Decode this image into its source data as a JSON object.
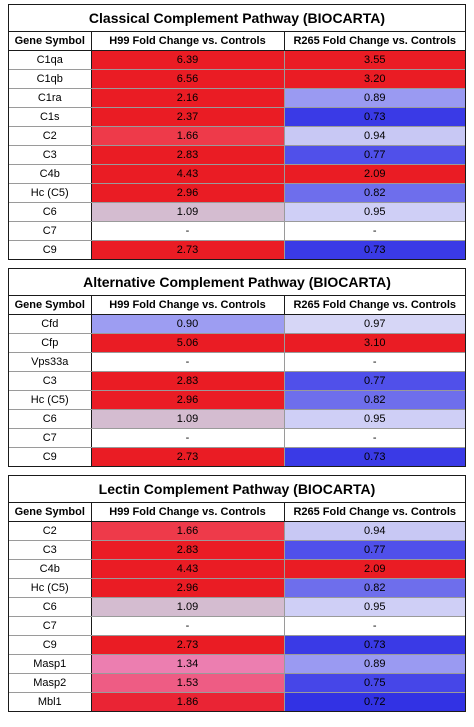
{
  "columns": {
    "gene": "Gene Symbol",
    "h99": "H99 Fold Change vs. Controls",
    "r265": "R265 Fold Change vs. Controls"
  },
  "tables": [
    {
      "title": "Classical Complement Pathway (BIOCARTA)",
      "rows": [
        {
          "gene": "C1qa",
          "h99": "6.39",
          "r265": "3.55",
          "h99_color": "#ea1c24",
          "r265_color": "#ea1c24"
        },
        {
          "gene": "C1qb",
          "h99": "6.56",
          "r265": "3.20",
          "h99_color": "#ea1c24",
          "r265_color": "#ea1c24"
        },
        {
          "gene": "C1ra",
          "h99": "2.16",
          "r265": "0.89",
          "h99_color": "#ea1c24",
          "r265_color": "#9a9af2"
        },
        {
          "gene": "C1s",
          "h99": "2.37",
          "r265": "0.73",
          "h99_color": "#ea1c24",
          "r265_color": "#3a3ae6"
        },
        {
          "gene": "C2",
          "h99": "1.66",
          "r265": "0.94",
          "h99_color": "#ee3a4a",
          "r265_color": "#c8c8f4"
        },
        {
          "gene": "C3",
          "h99": "2.83",
          "r265": "0.77",
          "h99_color": "#ea1c24",
          "r265_color": "#5050ea"
        },
        {
          "gene": "C4b",
          "h99": "4.43",
          "r265": "2.09",
          "h99_color": "#ea1c24",
          "r265_color": "#ea1c24"
        },
        {
          "gene": "Hc (C5)",
          "h99": "2.96",
          "r265": "0.82",
          "h99_color": "#ea1c24",
          "r265_color": "#6e6eec"
        },
        {
          "gene": "C6",
          "h99": "1.09",
          "r265": "0.95",
          "h99_color": "#d4bcd0",
          "r265_color": "#cfcff6"
        },
        {
          "gene": "C7",
          "h99": "-",
          "r265": "-",
          "h99_color": "#ffffff",
          "r265_color": "#ffffff"
        },
        {
          "gene": "C9",
          "h99": "2.73",
          "r265": "0.73",
          "h99_color": "#ea1c24",
          "r265_color": "#3a3ae6"
        }
      ]
    },
    {
      "title": "Alternative Complement Pathway (BIOCARTA)",
      "rows": [
        {
          "gene": "Cfd",
          "h99": "0.90",
          "r265": "0.97",
          "h99_color": "#9d9df2",
          "r265_color": "#d6d6f6"
        },
        {
          "gene": "Cfp",
          "h99": "5.06",
          "r265": "3.10",
          "h99_color": "#ea1c24",
          "r265_color": "#ea1c24"
        },
        {
          "gene": "Vps33a",
          "h99": "-",
          "r265": "-",
          "h99_color": "#ffffff",
          "r265_color": "#ffffff"
        },
        {
          "gene": "C3",
          "h99": "2.83",
          "r265": "0.77",
          "h99_color": "#ea1c24",
          "r265_color": "#5050ea"
        },
        {
          "gene": "Hc (C5)",
          "h99": "2.96",
          "r265": "0.82",
          "h99_color": "#ea1c24",
          "r265_color": "#6e6eec"
        },
        {
          "gene": "C6",
          "h99": "1.09",
          "r265": "0.95",
          "h99_color": "#d4bcd0",
          "r265_color": "#cfcff6"
        },
        {
          "gene": "C7",
          "h99": "-",
          "r265": "-",
          "h99_color": "#ffffff",
          "r265_color": "#ffffff"
        },
        {
          "gene": "C9",
          "h99": "2.73",
          "r265": "0.73",
          "h99_color": "#ea1c24",
          "r265_color": "#3a3ae6"
        }
      ]
    },
    {
      "title": "Lectin Complement Pathway (BIOCARTA)",
      "rows": [
        {
          "gene": "C2",
          "h99": "1.66",
          "r265": "0.94",
          "h99_color": "#ee3a4a",
          "r265_color": "#c8c8f4"
        },
        {
          "gene": "C3",
          "h99": "2.83",
          "r265": "0.77",
          "h99_color": "#ea1c24",
          "r265_color": "#5050ea"
        },
        {
          "gene": "C4b",
          "h99": "4.43",
          "r265": "2.09",
          "h99_color": "#ea1c24",
          "r265_color": "#ea1c24"
        },
        {
          "gene": "Hc (C5)",
          "h99": "2.96",
          "r265": "0.82",
          "h99_color": "#ea1c24",
          "r265_color": "#6e6eec"
        },
        {
          "gene": "C6",
          "h99": "1.09",
          "r265": "0.95",
          "h99_color": "#d4bcd0",
          "r265_color": "#cfcff6"
        },
        {
          "gene": "C7",
          "h99": "-",
          "r265": "-",
          "h99_color": "#ffffff",
          "r265_color": "#ffffff"
        },
        {
          "gene": "C9",
          "h99": "2.73",
          "r265": "0.73",
          "h99_color": "#ea1c24",
          "r265_color": "#3a3ae6"
        },
        {
          "gene": "Masp1",
          "h99": "1.34",
          "r265": "0.89",
          "h99_color": "#ec7eb0",
          "r265_color": "#9a9af2"
        },
        {
          "gene": "Masp2",
          "h99": "1.53",
          "r265": "0.75",
          "h99_color": "#ee5c84",
          "r265_color": "#4646e8"
        },
        {
          "gene": "Mbl1",
          "h99": "1.86",
          "r265": "0.72",
          "h99_color": "#ea2434",
          "r265_color": "#3232e4"
        }
      ]
    }
  ]
}
